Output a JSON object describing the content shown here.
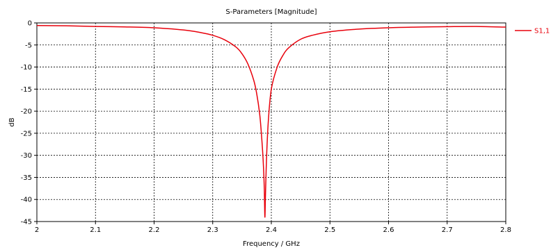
{
  "chart_data": {
    "type": "line",
    "title": "S-Parameters [Magnitude]",
    "xlabel": "Frequency / GHz",
    "ylabel": "dB",
    "xlim": [
      2,
      2.8
    ],
    "ylim": [
      -45,
      0
    ],
    "xticks": [
      "2",
      "2.1",
      "2.2",
      "2.3",
      "2.4",
      "2.5",
      "2.6",
      "2.7",
      "2.8"
    ],
    "yticks": [
      "0",
      "-5",
      "-10",
      "-15",
      "-20",
      "-25",
      "-30",
      "-35",
      "-40",
      "-45"
    ],
    "grid": true,
    "legend_position": "right",
    "series": [
      {
        "name": "S1,1",
        "color": "#e8000b",
        "x": [
          2.0,
          2.05,
          2.1,
          2.15,
          2.2,
          2.25,
          2.28,
          2.3,
          2.32,
          2.34,
          2.35,
          2.36,
          2.37,
          2.375,
          2.38,
          2.383,
          2.386,
          2.388,
          2.389,
          2.39,
          2.392,
          2.395,
          2.4,
          2.41,
          2.42,
          2.43,
          2.45,
          2.47,
          2.5,
          2.55,
          2.6,
          2.65,
          2.7,
          2.75,
          2.8
        ],
        "y": [
          -0.6,
          -0.65,
          -0.8,
          -0.9,
          -1.1,
          -1.6,
          -2.2,
          -2.8,
          -3.8,
          -5.5,
          -7.0,
          -9.3,
          -13.0,
          -16.0,
          -20.5,
          -25.0,
          -31.0,
          -37.5,
          -44.0,
          -39.0,
          -30.0,
          -22.0,
          -15.0,
          -10.0,
          -7.3,
          -5.6,
          -3.7,
          -2.8,
          -2.0,
          -1.4,
          -1.1,
          -0.95,
          -0.85,
          -0.8,
          -0.95
        ]
      }
    ]
  }
}
